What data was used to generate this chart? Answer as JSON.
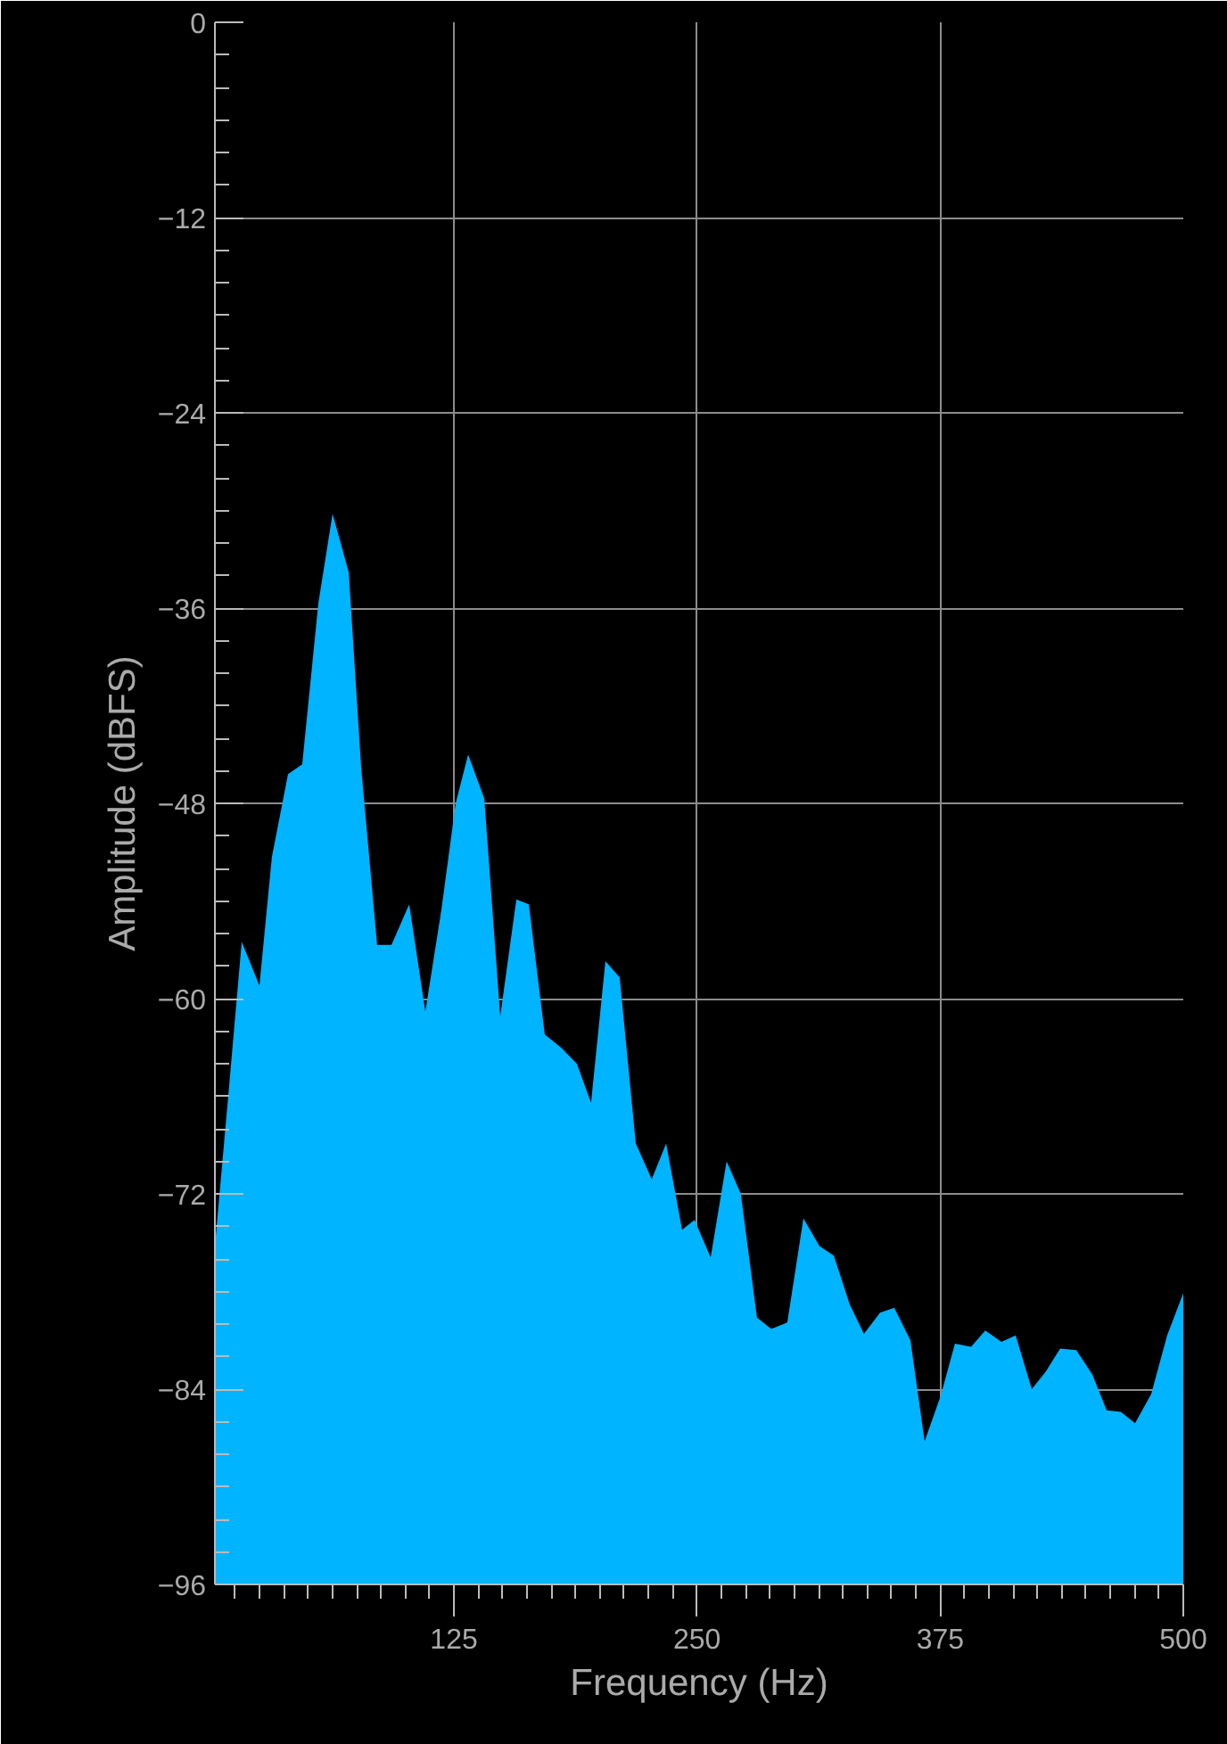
{
  "chart_data": {
    "type": "area",
    "xlabel": "Frequency (Hz)",
    "ylabel": "Amplitude (dBFS)",
    "xlim": [
      2.1,
      500
    ],
    "ylim": [
      -96,
      0
    ],
    "xticks": [
      125,
      250,
      375,
      500
    ],
    "yticks": [
      -96,
      -84,
      -72,
      -60,
      -48,
      -36,
      -24,
      -12,
      0
    ],
    "grid": true,
    "series": [
      {
        "color": "#00b4ff",
        "x": [
          2.1,
          9.4,
          15.9,
          25.0,
          31.4,
          39.7,
          47.0,
          55.3,
          62.6,
          70.9,
          77.3,
          85.5,
          92.9,
          102.0,
          110.3,
          118.6,
          125.9,
          132.3,
          140.6,
          148.8,
          157.1,
          163.5,
          171.7,
          180.0,
          188.2,
          195.5,
          202.9,
          210.2,
          218.5,
          226.7,
          234.1,
          242.3,
          248.7,
          257.0,
          265.2,
          272.5,
          280.8,
          288.2,
          296.4,
          304.7,
          312.9,
          320.3,
          328.5,
          335.8,
          344.1,
          351.4,
          359.7,
          367.0,
          375.3,
          382.6,
          390.9,
          398.2,
          406.5,
          413.8,
          422.1,
          429.4,
          436.7,
          445.0,
          453.2,
          460.6,
          467.9,
          475.2,
          483.5,
          491.7,
          500.0
        ],
        "values": [
          -75.2,
          -65.4,
          -56.5,
          -59.2,
          -51.3,
          -46.2,
          -45.6,
          -35.7,
          -30.2,
          -33.8,
          -45.8,
          -56.7,
          -56.7,
          -54.2,
          -60.8,
          -54.5,
          -48.0,
          -45.0,
          -47.7,
          -61.1,
          -53.9,
          -54.2,
          -62.2,
          -63.0,
          -64.0,
          -66.4,
          -57.7,
          -58.7,
          -68.9,
          -71.1,
          -68.9,
          -74.2,
          -73.6,
          -75.9,
          -70.0,
          -72.0,
          -79.6,
          -80.3,
          -79.9,
          -73.5,
          -75.2,
          -75.8,
          -78.8,
          -80.6,
          -79.3,
          -79.0,
          -81.0,
          -87.2,
          -84.4,
          -81.2,
          -81.4,
          -80.4,
          -81.1,
          -80.7,
          -84.0,
          -82.9,
          -81.5,
          -81.6,
          -83.1,
          -85.3,
          -85.4,
          -86.1,
          -84.3,
          -80.7,
          -78.1
        ]
      }
    ]
  }
}
